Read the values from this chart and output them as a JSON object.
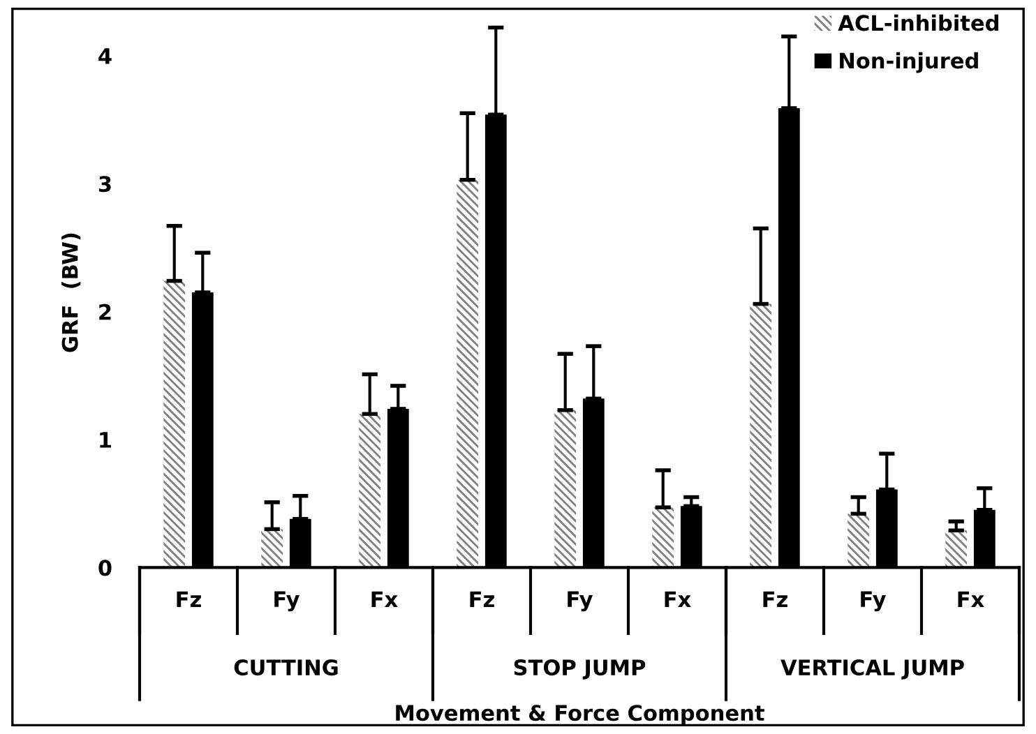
{
  "chart_data": {
    "type": "bar",
    "ylabel": "GRF  (BW)",
    "xlabel": "Movement & Force Component",
    "categories": [
      "Fz",
      "Fy",
      "Fx",
      "Fz",
      "Fy",
      "Fx",
      "Fz",
      "Fy",
      "Fx"
    ],
    "annotations": [
      "CUTTING",
      "STOP JUMP",
      "VERTICAL JUMP"
    ],
    "series": [
      {
        "name": "ACL-inhibited",
        "color": "#7f7f7f",
        "values": [
          2.24,
          0.3,
          1.2,
          3.03,
          1.23,
          0.47,
          2.06,
          0.42,
          0.29
        ],
        "errors": [
          [
            2.24,
            2.67
          ],
          [
            0.3,
            0.51
          ],
          [
            1.2,
            1.51
          ],
          [
            3.03,
            3.55
          ],
          [
            1.23,
            1.67
          ],
          [
            0.47,
            0.76
          ],
          [
            2.06,
            2.65
          ],
          [
            0.42,
            0.55
          ],
          [
            0.29,
            0.36
          ]
        ]
      },
      {
        "name": "Non-injured",
        "color": "#000000",
        "values": [
          2.15,
          0.38,
          1.24,
          3.54,
          1.32,
          0.48,
          3.59,
          0.61,
          0.45
        ],
        "errors": [
          [
            2.15,
            2.46
          ],
          [
            0.38,
            0.56
          ],
          [
            1.24,
            1.42
          ],
          [
            3.54,
            4.22
          ],
          [
            1.32,
            1.73
          ],
          [
            0.48,
            0.55
          ],
          [
            3.59,
            4.15
          ],
          [
            0.61,
            0.89
          ],
          [
            0.45,
            0.62
          ]
        ]
      }
    ],
    "ylim": [
      0,
      4.3
    ],
    "yticks": [
      0,
      1,
      2,
      3,
      4
    ],
    "grid": false,
    "legend": "top right"
  }
}
